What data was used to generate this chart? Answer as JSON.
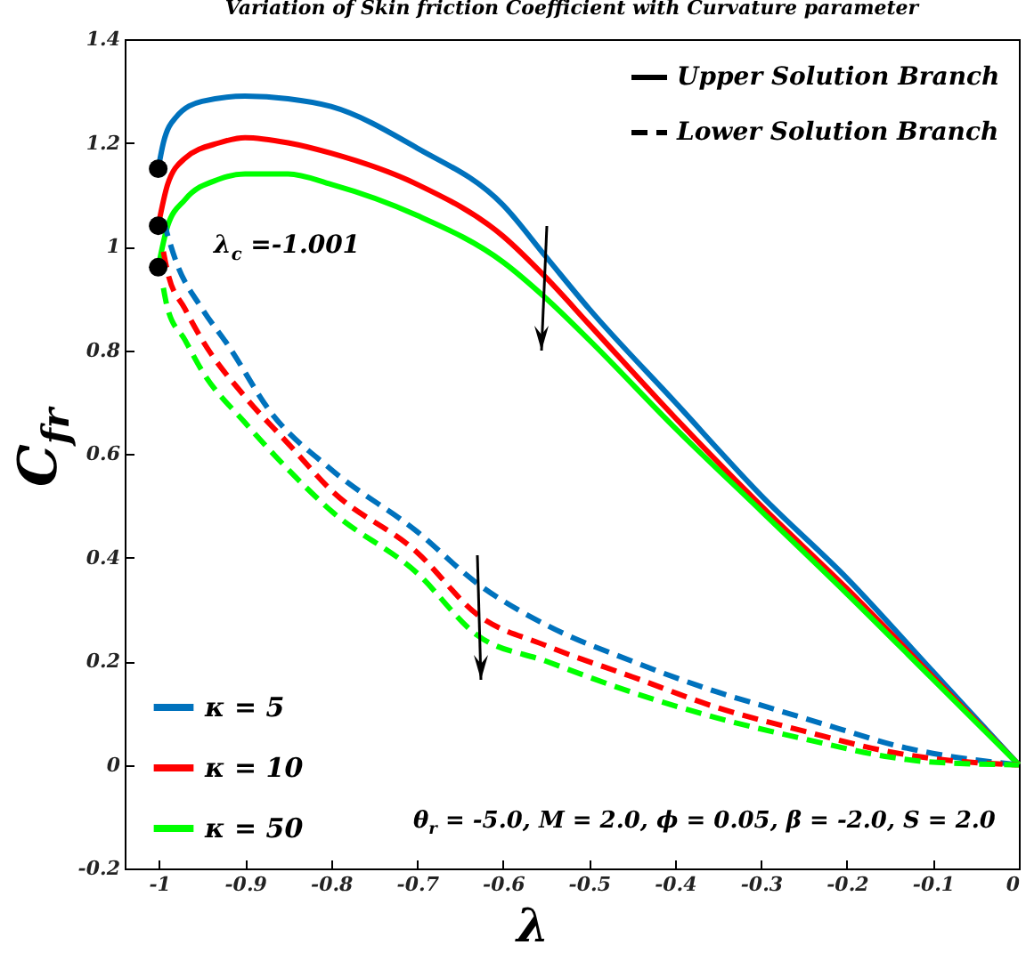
{
  "chart_data": {
    "type": "line",
    "title": "Variation of Skin friction Coefficient with Curvature parameter",
    "xlabel": "λ",
    "ylabel": "C$_{fr}$",
    "xlim": [
      -1.04,
      0
    ],
    "xticks": [
      -1,
      -0.9,
      -0.8,
      -0.7,
      -0.6,
      -0.5,
      -0.4,
      -0.3,
      -0.2,
      -0.1,
      0
    ],
    "ylim": [
      -0.2,
      1.4
    ],
    "yticks": [
      -0.2,
      0,
      0.2,
      0.4,
      0.6,
      0.8,
      1,
      1.2,
      1.4
    ],
    "grid": false,
    "legend": "bottom left",
    "annotations": [
      "Upper Solution Branch",
      "Lower Solution Branch",
      "λ$_{c}$ =-1.001",
      "θ$_{r}$ = -5.0, M = 2.0, ϕ = 0.05, β = -2.0, S = 2.0"
    ],
    "series": [
      {
        "name": "κ = 5",
        "color": "#0072bd",
        "line_style": "solid",
        "x": [
          -1.001,
          -0.995,
          -0.98,
          -0.95,
          -0.9,
          -0.85,
          -0.8,
          -0.7,
          -0.6,
          -0.55,
          -0.5,
          -0.4,
          -0.3,
          -0.2,
          -0.1,
          0
        ],
        "values": [
          1.15,
          1.2,
          1.25,
          1.28,
          1.29,
          1.285,
          1.27,
          1.19,
          1.08,
          0.98,
          0.88,
          0.7,
          0.52,
          0.36,
          0.18,
          0
        ]
      },
      {
        "name": "κ = 10",
        "color": "#ff0000",
        "line_style": "solid",
        "x": [
          -1.001,
          -0.99,
          -0.97,
          -0.93,
          -0.9,
          -0.85,
          -0.8,
          -0.7,
          -0.6,
          -0.55,
          -0.5,
          -0.4,
          -0.3,
          -0.2,
          -0.1,
          0
        ],
        "values": [
          1.04,
          1.12,
          1.17,
          1.2,
          1.21,
          1.2,
          1.18,
          1.12,
          1.02,
          0.94,
          0.85,
          0.67,
          0.5,
          0.34,
          0.17,
          0
        ]
      },
      {
        "name": "κ = 50",
        "color": "#00ff00",
        "line_style": "solid",
        "x": [
          -1.001,
          -0.99,
          -0.97,
          -0.93,
          -0.9,
          -0.85,
          -0.8,
          -0.7,
          -0.6,
          -0.55,
          -0.5,
          -0.4,
          -0.3,
          -0.2,
          -0.1,
          0
        ],
        "values": [
          0.96,
          1.04,
          1.09,
          1.13,
          1.14,
          1.14,
          1.12,
          1.06,
          0.97,
          0.9,
          0.82,
          0.65,
          0.49,
          0.33,
          0.165,
          0
        ]
      },
      {
        "color": "#0072bd",
        "line_style": "dashed",
        "x": [
          -0.995,
          -0.98,
          -0.95,
          -0.92,
          -0.87,
          -0.8,
          -0.7,
          -0.63,
          -0.55,
          -0.45,
          -0.35,
          -0.29,
          -0.2,
          -0.15,
          -0.1,
          0
        ],
        "values": [
          1.05,
          0.97,
          0.88,
          0.81,
          0.68,
          0.57,
          0.45,
          0.35,
          0.27,
          0.2,
          0.14,
          0.11,
          0.065,
          0.04,
          0.022,
          0
        ]
      },
      {
        "color": "#ff0000",
        "line_style": "dashed",
        "x": [
          -0.995,
          -0.99,
          -0.97,
          -0.95,
          -0.9,
          -0.85,
          -0.8,
          -0.7,
          -0.63,
          -0.55,
          -0.45,
          -0.35,
          -0.25,
          -0.15,
          -0.1,
          0
        ],
        "values": [
          0.99,
          0.95,
          0.88,
          0.82,
          0.71,
          0.62,
          0.53,
          0.41,
          0.29,
          0.23,
          0.17,
          0.11,
          0.065,
          0.025,
          0.012,
          0
        ]
      },
      {
        "color": "#00ff00",
        "line_style": "dashed",
        "x": [
          -0.995,
          -0.99,
          -0.97,
          -0.95,
          -0.9,
          -0.85,
          -0.8,
          -0.7,
          -0.63,
          -0.55,
          -0.45,
          -0.35,
          -0.25,
          -0.15,
          -0.1,
          0
        ],
        "values": [
          0.92,
          0.88,
          0.82,
          0.76,
          0.66,
          0.57,
          0.49,
          0.37,
          0.25,
          0.2,
          0.14,
          0.09,
          0.05,
          0.015,
          0.005,
          0
        ]
      },
      {
        "type": "scatter",
        "color": "#000000",
        "marker": "circle",
        "x": [
          -1.001,
          -1.001,
          -1.001
        ],
        "values": [
          1.15,
          1.04,
          0.96
        ]
      }
    ]
  }
}
